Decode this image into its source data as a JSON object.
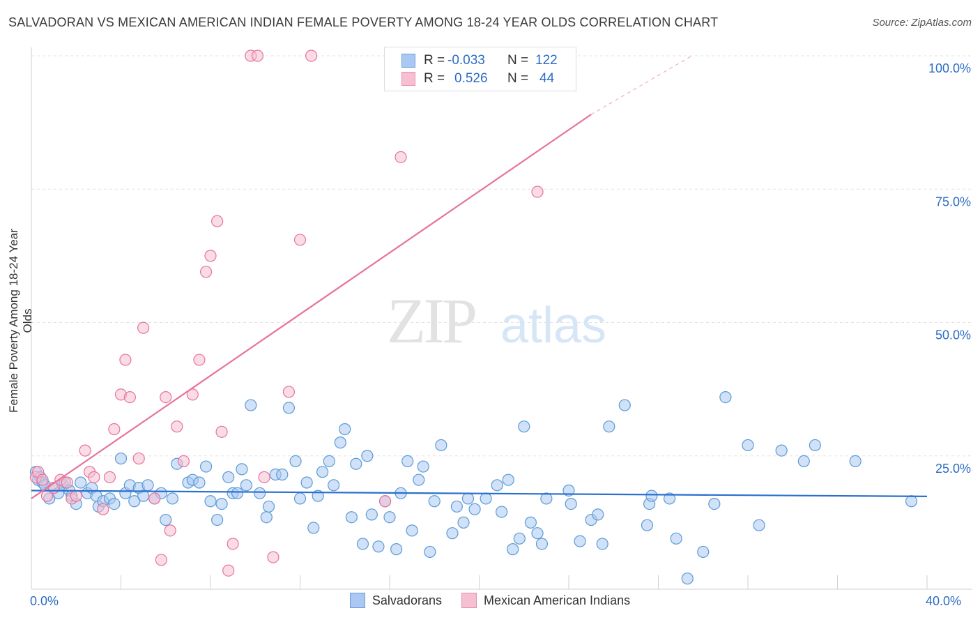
{
  "title": "SALVADORAN VS MEXICAN AMERICAN INDIAN FEMALE POVERTY AMONG 18-24 YEAR OLDS CORRELATION CHART",
  "source": "Source: ZipAtlas.com",
  "watermark": {
    "zip": "ZIP",
    "atlas": "atlas"
  },
  "legend_top": {
    "rows": [
      {
        "r_label": "R =",
        "r_value": "-0.033",
        "n_label": "N =",
        "n_value": "122"
      },
      {
        "r_label": "R =",
        "r_value": "0.526",
        "n_label": "N =",
        "n_value": "44"
      }
    ]
  },
  "colors": {
    "blue": "#5b9bd5",
    "blue_fill": "#aac8f2",
    "pink": "#e8729a",
    "pink_fill": "#f6bfd2",
    "blue_line": "#2a6fcf",
    "pink_line": "#e8729a"
  },
  "chart_data": {
    "type": "scatter",
    "title": "SALVADORAN VS MEXICAN AMERICAN INDIAN FEMALE POVERTY AMONG 18-24 YEAR OLDS CORRELATION CHART",
    "xlabel": "",
    "ylabel": "Female Poverty Among 18-24 Year Olds",
    "xlim": [
      0,
      40
    ],
    "ylim": [
      0,
      100
    ],
    "x_tick_labels": [
      "0.0%",
      "40.0%"
    ],
    "y_tick_labels": [
      "25.0%",
      "50.0%",
      "75.0%",
      "100.0%"
    ],
    "y_ticks": [
      25,
      50,
      75,
      100
    ],
    "grid": true,
    "legend_position": "bottom",
    "series": [
      {
        "name": "Salvadorans",
        "R": -0.033,
        "N": 122,
        "trend": {
          "x": [
            0,
            40
          ],
          "y": [
            18.5,
            17.4
          ]
        },
        "points": [
          [
            0.2,
            22
          ],
          [
            0.3,
            20.5
          ],
          [
            0.4,
            21
          ],
          [
            0.5,
            20
          ],
          [
            0.6,
            19.5
          ],
          [
            0.8,
            17
          ],
          [
            1.0,
            19
          ],
          [
            1.2,
            18
          ],
          [
            1.4,
            19.5
          ],
          [
            1.5,
            20
          ],
          [
            1.7,
            18.5
          ],
          [
            1.8,
            17.5
          ],
          [
            2.0,
            16
          ],
          [
            2.2,
            20
          ],
          [
            2.5,
            18
          ],
          [
            2.7,
            19
          ],
          [
            2.9,
            17.5
          ],
          [
            3.0,
            15.5
          ],
          [
            3.2,
            16.5
          ],
          [
            3.5,
            17
          ],
          [
            3.7,
            16
          ],
          [
            4.0,
            24.5
          ],
          [
            4.2,
            18
          ],
          [
            4.4,
            19.5
          ],
          [
            4.6,
            16.5
          ],
          [
            4.8,
            19
          ],
          [
            5.0,
            17.5
          ],
          [
            5.2,
            19.5
          ],
          [
            5.5,
            17
          ],
          [
            5.8,
            18
          ],
          [
            6.0,
            13
          ],
          [
            6.3,
            17
          ],
          [
            6.5,
            23.5
          ],
          [
            7.0,
            20
          ],
          [
            7.2,
            20.5
          ],
          [
            7.5,
            20
          ],
          [
            7.8,
            23
          ],
          [
            8.0,
            16.5
          ],
          [
            8.3,
            13
          ],
          [
            8.5,
            16
          ],
          [
            8.8,
            21
          ],
          [
            9.0,
            18
          ],
          [
            9.2,
            18
          ],
          [
            9.4,
            22.5
          ],
          [
            9.6,
            19.5
          ],
          [
            9.8,
            34.5
          ],
          [
            10.2,
            18
          ],
          [
            10.5,
            13.5
          ],
          [
            10.6,
            15.5
          ],
          [
            10.9,
            21.5
          ],
          [
            11.2,
            21.5
          ],
          [
            11.5,
            34
          ],
          [
            11.8,
            24
          ],
          [
            12.0,
            17
          ],
          [
            12.3,
            20
          ],
          [
            12.6,
            11.5
          ],
          [
            12.8,
            17.5
          ],
          [
            13.0,
            22
          ],
          [
            13.3,
            24
          ],
          [
            13.5,
            19.5
          ],
          [
            13.8,
            27.5
          ],
          [
            14.0,
            30
          ],
          [
            14.3,
            13.5
          ],
          [
            14.5,
            23.5
          ],
          [
            14.8,
            8.5
          ],
          [
            15.0,
            25
          ],
          [
            15.2,
            14
          ],
          [
            15.5,
            8
          ],
          [
            15.8,
            16.5
          ],
          [
            16.0,
            13.5
          ],
          [
            16.3,
            7.5
          ],
          [
            16.5,
            18
          ],
          [
            16.8,
            24
          ],
          [
            17.0,
            11
          ],
          [
            17.3,
            20.5
          ],
          [
            17.5,
            23
          ],
          [
            17.8,
            7
          ],
          [
            18.0,
            16.5
          ],
          [
            18.3,
            27
          ],
          [
            18.8,
            10.5
          ],
          [
            19.0,
            15.5
          ],
          [
            19.3,
            12.5
          ],
          [
            19.5,
            17
          ],
          [
            19.8,
            15
          ],
          [
            20.3,
            17
          ],
          [
            20.8,
            19.5
          ],
          [
            21.0,
            14.5
          ],
          [
            21.3,
            20.5
          ],
          [
            21.5,
            7.5
          ],
          [
            21.8,
            9.5
          ],
          [
            22.0,
            30.5
          ],
          [
            22.3,
            12.5
          ],
          [
            22.6,
            10.5
          ],
          [
            22.8,
            8.5
          ],
          [
            23.0,
            17
          ],
          [
            24.0,
            18.5
          ],
          [
            24.1,
            16
          ],
          [
            24.5,
            9
          ],
          [
            25.0,
            13
          ],
          [
            25.3,
            14
          ],
          [
            25.5,
            8.5
          ],
          [
            25.8,
            30.5
          ],
          [
            26.5,
            34.5
          ],
          [
            27.5,
            12
          ],
          [
            27.6,
            16
          ],
          [
            27.7,
            17.5
          ],
          [
            28.5,
            17
          ],
          [
            28.8,
            9.5
          ],
          [
            29.3,
            2
          ],
          [
            30.0,
            7
          ],
          [
            30.5,
            16
          ],
          [
            31.0,
            36
          ],
          [
            32.0,
            27
          ],
          [
            32.5,
            12
          ],
          [
            33.5,
            26
          ],
          [
            34.5,
            24
          ],
          [
            35.0,
            27
          ],
          [
            36.8,
            24
          ],
          [
            39.3,
            16.5
          ]
        ]
      },
      {
        "name": "Mexican American Indians",
        "R": 0.526,
        "N": 44,
        "trend": {
          "x": [
            0,
            25
          ],
          "y": [
            17,
            89
          ]
        },
        "trend_dashed": {
          "x": [
            25,
            29.5
          ],
          "y": [
            89,
            100
          ]
        },
        "points": [
          [
            0.2,
            21
          ],
          [
            0.3,
            22
          ],
          [
            0.5,
            20.5
          ],
          [
            0.7,
            17.5
          ],
          [
            1.0,
            19
          ],
          [
            1.3,
            20.5
          ],
          [
            1.6,
            20
          ],
          [
            1.8,
            17
          ],
          [
            2.0,
            17.5
          ],
          [
            2.4,
            26
          ],
          [
            2.6,
            22
          ],
          [
            2.8,
            21
          ],
          [
            3.2,
            15
          ],
          [
            3.5,
            21
          ],
          [
            3.7,
            30
          ],
          [
            4.0,
            36.5
          ],
          [
            4.2,
            43
          ],
          [
            4.4,
            36
          ],
          [
            4.8,
            24.5
          ],
          [
            5.0,
            49
          ],
          [
            5.5,
            17
          ],
          [
            5.8,
            5.5
          ],
          [
            6.0,
            36
          ],
          [
            6.2,
            11
          ],
          [
            6.5,
            30.5
          ],
          [
            6.8,
            24
          ],
          [
            7.2,
            36.5
          ],
          [
            7.5,
            43
          ],
          [
            7.8,
            59.5
          ],
          [
            8.0,
            62.5
          ],
          [
            8.3,
            69
          ],
          [
            8.5,
            29.5
          ],
          [
            8.8,
            3.5
          ],
          [
            9.0,
            8.5
          ],
          [
            9.8,
            100
          ],
          [
            10.1,
            100
          ],
          [
            10.4,
            21
          ],
          [
            10.8,
            6
          ],
          [
            11.5,
            37
          ],
          [
            12.0,
            65.5
          ],
          [
            12.5,
            100
          ],
          [
            15.8,
            16.5
          ],
          [
            16.5,
            81
          ],
          [
            22.6,
            74.5
          ]
        ]
      }
    ]
  },
  "legend_bottom": {
    "items": [
      "Salvadorans",
      "Mexican American Indians"
    ]
  }
}
